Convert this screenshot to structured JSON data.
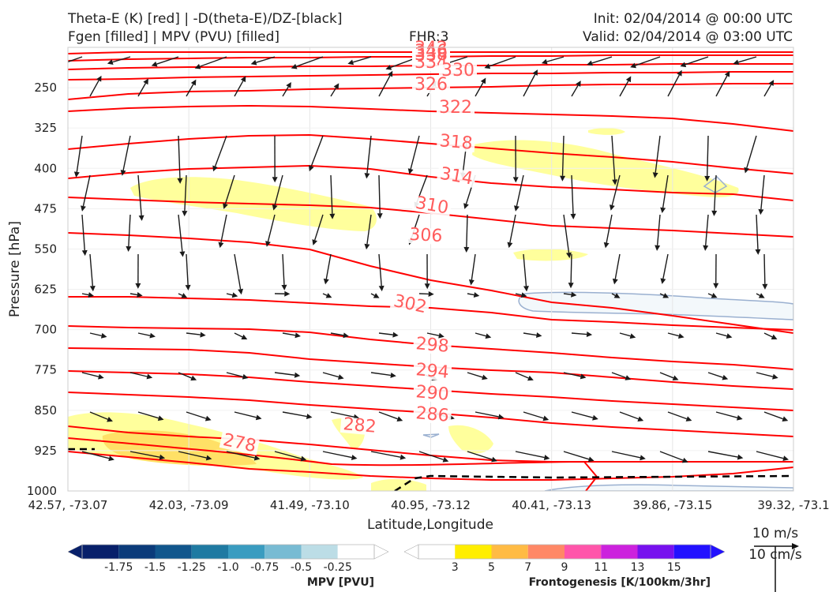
{
  "header": {
    "title_line1": "Theta-E (K) [red] | -D(theta-E)/DZ-[black]",
    "title_line2": "Fgen [filled] | MPV (PVU) [filled]",
    "fhr": "FHR:3",
    "init": "Init: 02/04/2014 @ 00:00 UTC",
    "valid": "Valid: 02/04/2014 @ 03:00 UTC"
  },
  "colors": {
    "theta_e": "#ff0000",
    "label": "#ff5c5c",
    "fgen_3": "#ffff9c",
    "fgen_5": "#ffe066",
    "mpv_fill": "#f3f8fb",
    "mpv_line": "#9ab0d0"
  },
  "chart_data": {
    "type": "cross-section",
    "xlabel": "Latitude,Longitude",
    "ylabel": "Pressure [hPa]",
    "ylim": [
      1000,
      175
    ],
    "x_ticks": [
      "42.57, -73.07",
      "42.03, -73.09",
      "41.49, -73.10",
      "40.95, -73.12",
      "40.41, -73.13",
      "39.86, -73.15",
      "39.32, -73.1"
    ],
    "y_ticks": [
      250,
      325,
      400,
      475,
      550,
      625,
      700,
      775,
      850,
      925,
      1000
    ],
    "theta_e_labels": [
      "338",
      "334",
      "330",
      "326",
      "322",
      "318",
      "314",
      "310",
      "306",
      "302",
      "298",
      "294",
      "290",
      "286",
      "282",
      "278"
    ],
    "theta_e_top_overlap_labels": [
      "342",
      "346",
      "338"
    ],
    "reference_vector": {
      "label_top": "10 m/s",
      "label_bottom": "10 cm/s"
    },
    "mpv_colorbar": {
      "title": "MPV [PVU]",
      "ticks": [
        "-1.75",
        "-1.5",
        "-1.25",
        "-1.0",
        "-0.75",
        "-0.5",
        "-0.25"
      ],
      "colors": [
        "#08206a",
        "#0b3b7a",
        "#11568c",
        "#1f7aa2",
        "#3a9cc0",
        "#78bbd3",
        "#bcdde6",
        "#ffffff"
      ]
    },
    "fgen_colorbar": {
      "title": "Frontogenesis [K/100km/3hr]",
      "ticks": [
        "3",
        "5",
        "7",
        "9",
        "11",
        "13",
        "15"
      ],
      "colors": [
        "#ffffff",
        "#ffee00",
        "#ffbb44",
        "#ff8866",
        "#ff55aa",
        "#cc22dd",
        "#7711ee",
        "#2211ff"
      ]
    }
  }
}
